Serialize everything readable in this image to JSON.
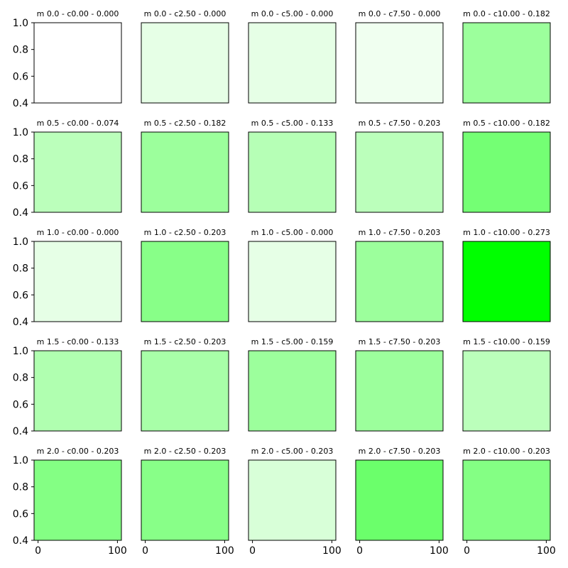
{
  "chart_data": {
    "type": "heatmap",
    "rows": [
      "m 0.0",
      "m 0.5",
      "m 1.0",
      "m 1.5",
      "m 2.0"
    ],
    "columns": [
      "c0.00",
      "c2.50",
      "c5.00",
      "c7.50",
      "c10.00"
    ],
    "panels": [
      [
        {
          "title": "m 0.0 - c0.00 - 0.000",
          "value": 0.0,
          "color": "#ffffff"
        },
        {
          "title": "m 0.0 - c2.50 - 0.000",
          "value": 0.0,
          "color": "#e6ffe6"
        },
        {
          "title": "m 0.0 - c5.00 - 0.000",
          "value": 0.0,
          "color": "#e6ffe6"
        },
        {
          "title": "m 0.0 - c7.50 - 0.000",
          "value": 0.0,
          "color": "#f0fff0"
        },
        {
          "title": "m 0.0 - c10.00 - 0.182",
          "value": 0.182,
          "color": "#9cff9c"
        }
      ],
      [
        {
          "title": "m 0.5 - c0.00 - 0.074",
          "value": 0.074,
          "color": "#bbffbb"
        },
        {
          "title": "m 0.5 - c2.50 - 0.182",
          "value": 0.182,
          "color": "#9cff9c"
        },
        {
          "title": "m 0.5 - c5.00 - 0.133",
          "value": 0.133,
          "color": "#b6ffb6"
        },
        {
          "title": "m 0.5 - c7.50 - 0.203",
          "value": 0.203,
          "color": "#bbffbb"
        },
        {
          "title": "m 0.5 - c10.00 - 0.182",
          "value": 0.182,
          "color": "#74ff74"
        }
      ],
      [
        {
          "title": "m 1.0 - c0.00 - 0.000",
          "value": 0.0,
          "color": "#e6ffe6"
        },
        {
          "title": "m 1.0 - c2.50 - 0.203",
          "value": 0.203,
          "color": "#88ff88"
        },
        {
          "title": "m 1.0 - c5.00 - 0.000",
          "value": 0.0,
          "color": "#e6ffe6"
        },
        {
          "title": "m 1.0 - c7.50 - 0.203",
          "value": 0.203,
          "color": "#9cff9c"
        },
        {
          "title": "m 1.0 - c10.00 - 0.273",
          "value": 0.273,
          "color": "#00ff00"
        }
      ],
      [
        {
          "title": "m 1.5 - c0.00 - 0.133",
          "value": 0.133,
          "color": "#b0ffb0"
        },
        {
          "title": "m 1.5 - c2.50 - 0.203",
          "value": 0.203,
          "color": "#a8ffa8"
        },
        {
          "title": "m 1.5 - c5.00 - 0.159",
          "value": 0.159,
          "color": "#9cff9c"
        },
        {
          "title": "m 1.5 - c7.50 - 0.203",
          "value": 0.203,
          "color": "#9cff9c"
        },
        {
          "title": "m 1.5 - c10.00 - 0.159",
          "value": 0.159,
          "color": "#bbffbb"
        }
      ],
      [
        {
          "title": "m 2.0 - c0.00 - 0.203",
          "value": 0.203,
          "color": "#84ff84"
        },
        {
          "title": "m 2.0 - c2.50 - 0.203",
          "value": 0.203,
          "color": "#88ff88"
        },
        {
          "title": "m 2.0 - c5.00 - 0.203",
          "value": 0.203,
          "color": "#d8ffd8"
        },
        {
          "title": "m 2.0 - c7.50 - 0.203",
          "value": 0.203,
          "color": "#6bff6b"
        },
        {
          "title": "m 2.0 - c10.00 - 0.203",
          "value": 0.203,
          "color": "#84ff84"
        }
      ]
    ],
    "ylim": [
      0.4,
      1.0
    ],
    "yticks": [
      "1.0",
      "0.8",
      "0.6",
      "0.4"
    ],
    "xlim": [
      -5,
      105
    ],
    "xticks": [
      "0",
      "100"
    ],
    "grid": false,
    "legend": "none"
  }
}
